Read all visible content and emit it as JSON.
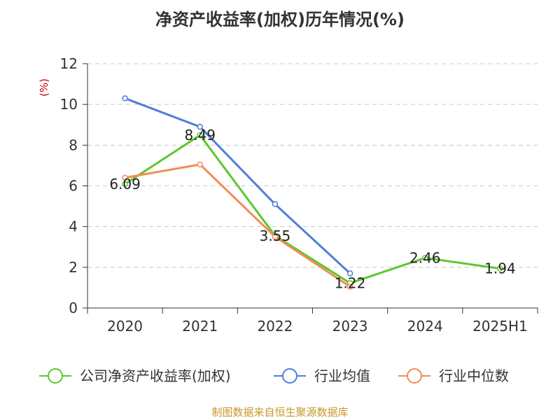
{
  "chart_data": {
    "type": "line",
    "title": "净资产收益率(加权)历年情况(%)",
    "unit_label": "(%)",
    "categories": [
      "2020",
      "2021",
      "2022",
      "2023",
      "2024",
      "2025H1"
    ],
    "y_ticks": [
      "0",
      "2",
      "4",
      "6",
      "8",
      "10",
      "12"
    ],
    "ylim": [
      0,
      12
    ],
    "grid": true,
    "legend_position": "bottom",
    "series": [
      {
        "name": "公司净资产收益率(加权)",
        "color": "#5cc72f",
        "values": [
          6.09,
          8.49,
          3.55,
          1.22,
          2.46,
          1.94
        ],
        "labels": [
          "6.09",
          "8.49",
          "3.55",
          "1.22",
          "2.46",
          "1.94"
        ]
      },
      {
        "name": "行业均值",
        "color": "#4e7fd8",
        "values": [
          10.3,
          8.9,
          5.1,
          1.7,
          null,
          null
        ]
      },
      {
        "name": "行业中位数",
        "color": "#f28c56",
        "values": [
          6.4,
          7.05,
          3.5,
          1.05,
          null,
          null
        ]
      }
    ]
  },
  "footer": {
    "source": "制图数据来自恒生聚源数据库"
  }
}
